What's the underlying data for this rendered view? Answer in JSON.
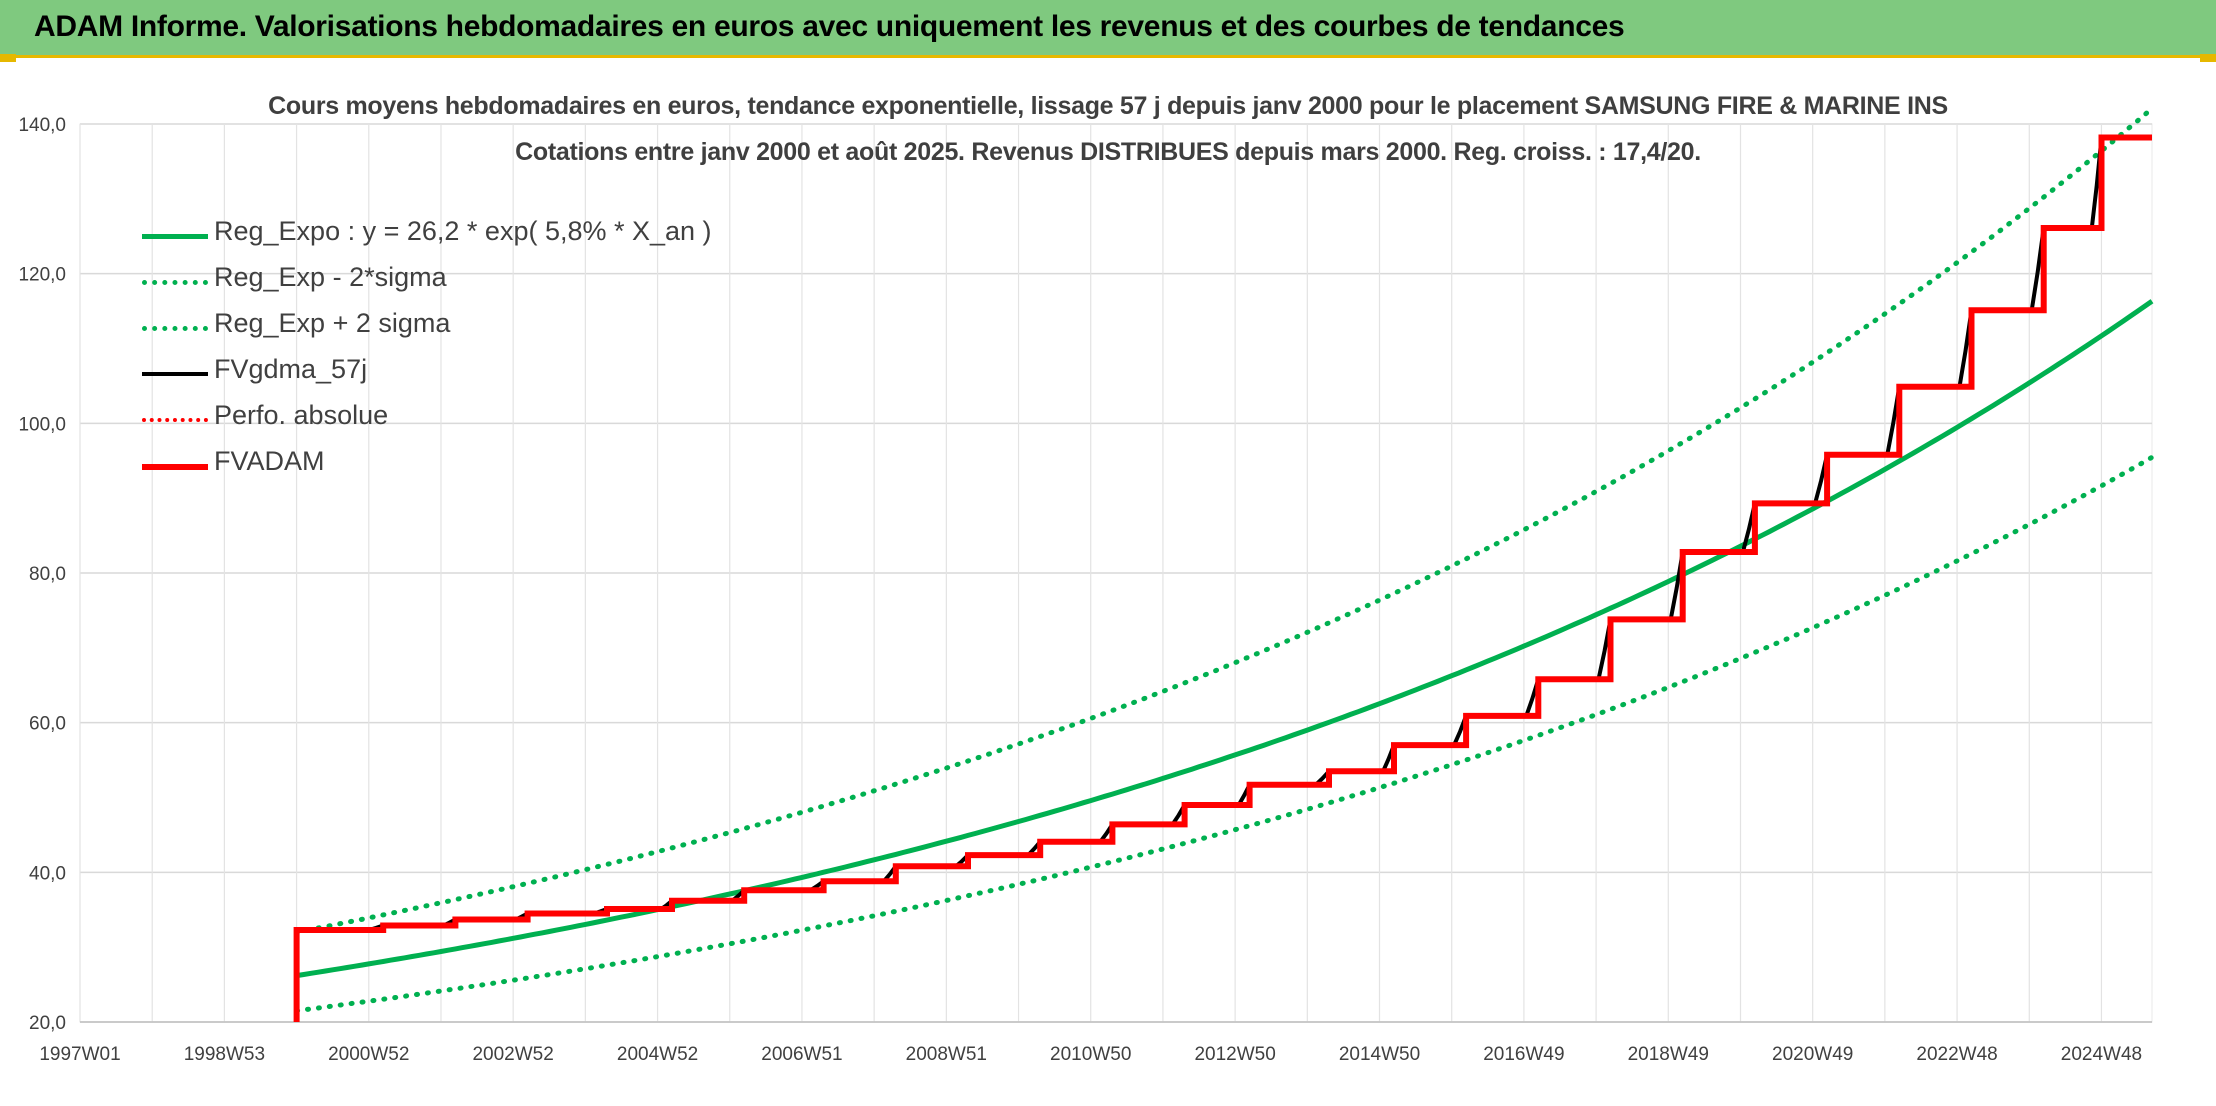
{
  "header": {
    "title": "ADAM Informe. Valorisations hebdomadaires en euros avec uniquement les revenus et des courbes de tendances",
    "background": "#7fc97f",
    "accent": "#e6b800"
  },
  "chart_data": {
    "type": "line",
    "title": "Cours moyens hebdomadaires en euros, tendance exponentielle, lissage 57 j depuis janv 2000 pour le placement SAMSUNG FIRE & MARINE INS",
    "subtitle": "Cotations entre janv 2000 et août 2025. Revenus DISTRIBUES depuis mars 2000. Reg. croiss. : 17,4/20.",
    "xlabel": "",
    "ylabel": "",
    "x_tick_labels": [
      "1997W01",
      "1998W53",
      "2000W52",
      "2002W52",
      "2004W52",
      "2006W51",
      "2008W51",
      "2010W50",
      "2012W50",
      "2014W50",
      "2016W49",
      "2018W49",
      "2020W49",
      "2022W48",
      "2024W48"
    ],
    "x_tick_years": [
      1997.0,
      1999.0,
      2001.0,
      2003.0,
      2005.0,
      2007.0,
      2009.0,
      2011.0,
      2013.0,
      2015.0,
      2017.0,
      2019.0,
      2021.0,
      2023.0,
      2025.0
    ],
    "xlim": [
      1997.0,
      2025.7
    ],
    "ylim": [
      20,
      140
    ],
    "y_ticks": [
      20,
      40,
      60,
      80,
      100,
      120,
      140
    ],
    "y_tick_labels": [
      "20,0",
      "40,0",
      "60,0",
      "80,0",
      "100,0",
      "120,0",
      "140,0"
    ],
    "grid": true,
    "legend_position": "top-left",
    "series": [
      {
        "name": "Reg_Expo : y = 26,2 * exp( 5,8% *  X_an )",
        "color": "#00b050",
        "style": "solid",
        "x": [
          2000.0,
          2002.0,
          2004.0,
          2006.0,
          2008.0,
          2010.0,
          2012.0,
          2014.0,
          2016.0,
          2018.0,
          2020.0,
          2022.0,
          2024.0,
          2025.7
        ],
        "y": [
          26.2,
          29.4,
          33.0,
          37.0,
          41.6,
          46.7,
          52.4,
          58.8,
          66.0,
          74.0,
          83.1,
          93.3,
          104.7,
          115.5
        ]
      },
      {
        "name": "Reg_Exp - 2*sigma",
        "color": "#00b050",
        "style": "dotted",
        "x": [
          2000.0,
          2002.0,
          2004.0,
          2006.0,
          2008.0,
          2010.0,
          2012.0,
          2014.0,
          2016.0,
          2018.0,
          2020.0,
          2022.0,
          2024.0,
          2025.7
        ],
        "y": [
          21.5,
          24.1,
          27.1,
          30.4,
          34.1,
          38.3,
          43.0,
          48.2,
          54.1,
          60.7,
          68.1,
          76.5,
          85.9,
          94.7
        ]
      },
      {
        "name": "Reg_Exp + 2 sigma",
        "color": "#00b050",
        "style": "dotted",
        "x": [
          2000.0,
          2002.0,
          2004.0,
          2006.0,
          2008.0,
          2010.0,
          2012.0,
          2014.0,
          2016.0,
          2018.0,
          2020.0,
          2022.0,
          2024.0,
          2025.7
        ],
        "y": [
          32.0,
          35.9,
          40.3,
          45.2,
          50.7,
          57.0,
          63.9,
          71.7,
          80.5,
          90.3,
          101.4,
          113.8,
          127.7,
          140.9
        ]
      },
      {
        "name": "FVgdma_57j",
        "color": "#000000",
        "style": "solid",
        "x": [
          2000.0,
          2025.7
        ],
        "y": [
          32.3,
          137.8
        ]
      },
      {
        "name": "Perfo. absolue",
        "color": "#ff0000",
        "style": "dotted",
        "x": [],
        "y": []
      },
      {
        "name": "FVADAM",
        "color": "#ff0000",
        "style": "step",
        "x": [
          2000.0,
          2000.0,
          2001.2,
          2002.2,
          2003.2,
          2004.3,
          2005.2,
          2006.2,
          2007.3,
          2008.3,
          2009.3,
          2010.3,
          2011.3,
          2012.3,
          2013.2,
          2014.3,
          2015.2,
          2016.2,
          2017.2,
          2018.2,
          2019.2,
          2020.2,
          2021.2,
          2022.2,
          2023.2,
          2024.2,
          2025.0,
          2025.7
        ],
        "y": [
          20.0,
          32.3,
          32.9,
          33.7,
          34.5,
          35.1,
          36.2,
          37.6,
          38.8,
          40.8,
          42.3,
          44.1,
          46.4,
          49.0,
          51.7,
          53.5,
          57.0,
          60.9,
          65.8,
          73.8,
          82.8,
          89.3,
          95.8,
          104.9,
          115.1,
          126.1,
          138.2,
          138.2
        ]
      }
    ]
  }
}
